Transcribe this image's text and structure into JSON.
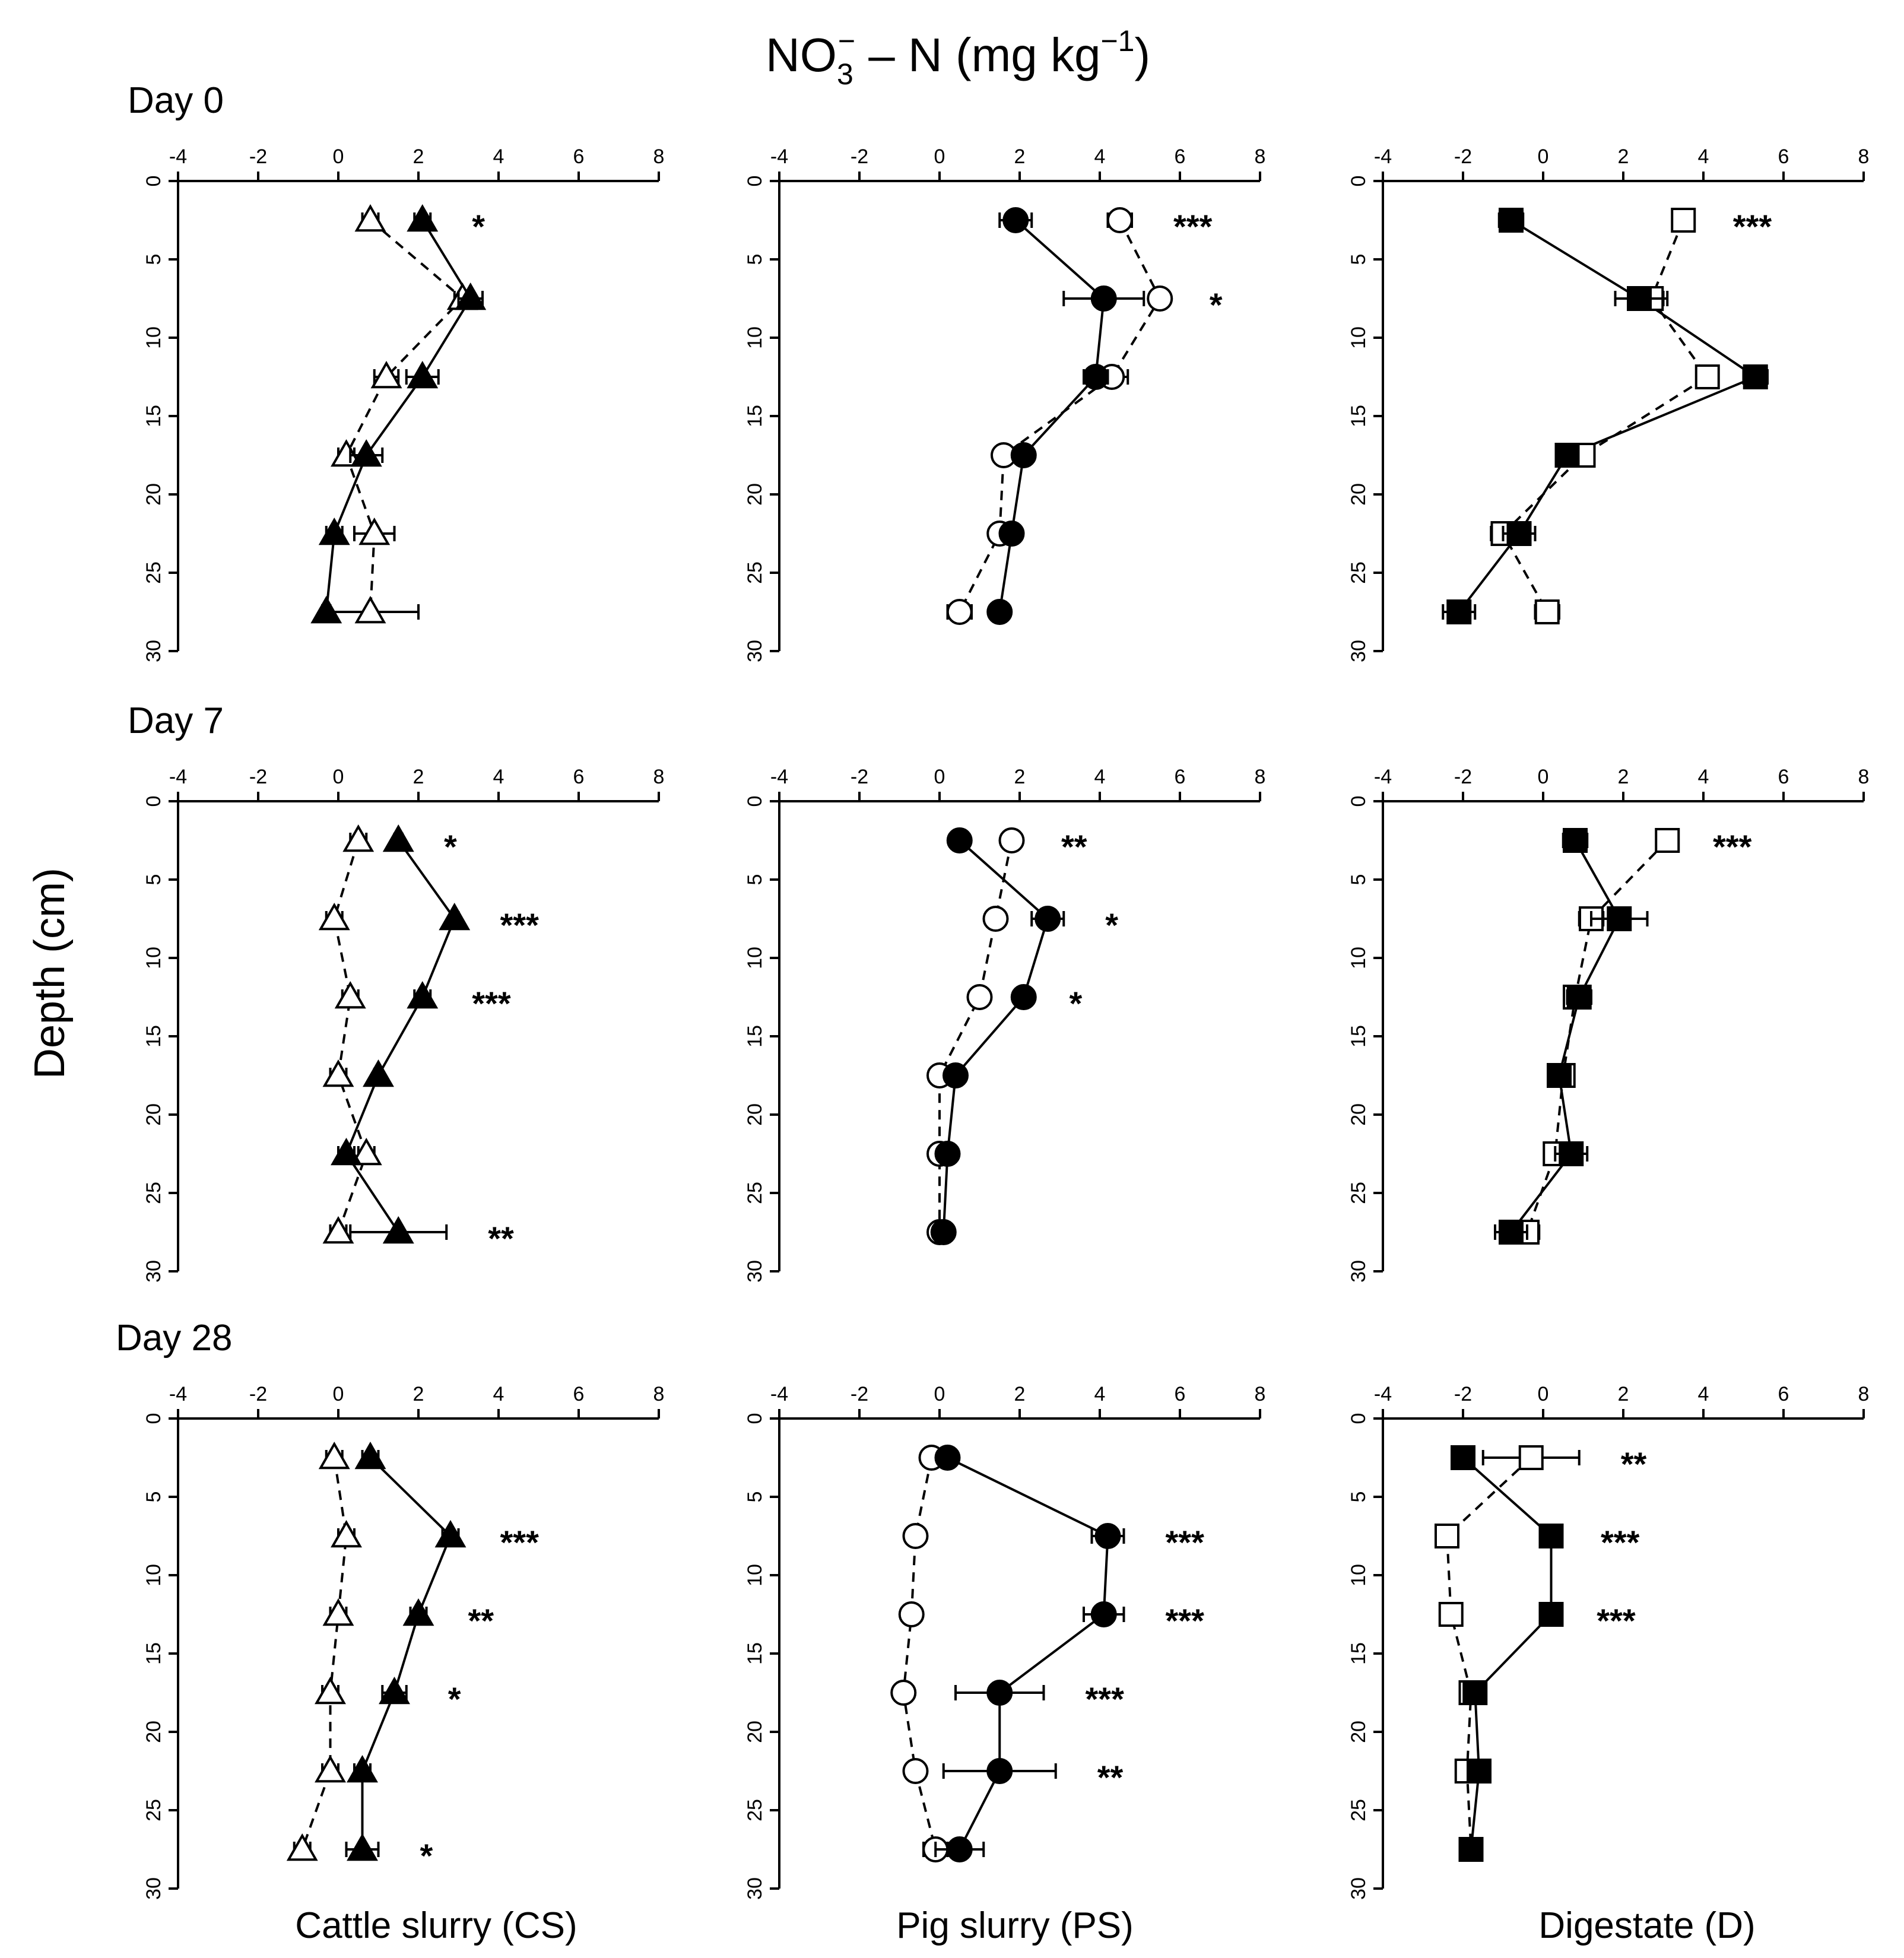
{
  "title_main": "NO",
  "title_sub": "3",
  "title_sup": "−",
  "title_tail": " – N (mg kg",
  "title_tail_sup": "−1",
  "title_close": ")",
  "ylabel": "Depth (cm)",
  "rows": [
    "Day 0",
    "Day 7",
    "Day 28"
  ],
  "columns": [
    {
      "label": "Cattle slurry (CS)",
      "marker": "triangle"
    },
    {
      "label": "Pig slurry (PS)",
      "marker": "circle"
    },
    {
      "label": "Digestate (D)",
      "marker": "square"
    }
  ],
  "x_ticks": [
    "-4",
    "-2",
    "0",
    "2",
    "4",
    "6",
    "8"
  ],
  "y_ticks": [
    "0",
    "5",
    "10",
    "15",
    "20",
    "25",
    "30"
  ],
  "chart_data": {
    "type": "scatter",
    "layout": "3x3 grid of depth profiles",
    "xlabel": "NO3- - N (mg kg-1)",
    "ylabel": "Depth (cm)",
    "xlim": [
      -4,
      8
    ],
    "ylim": [
      30,
      0
    ],
    "depths": [
      2.5,
      7.5,
      12.5,
      17.5,
      22.5,
      27.5
    ],
    "series_styles": {
      "filled": "solid line, filled marker",
      "open": "dashed line, open marker"
    },
    "panels": [
      {
        "day": "Day 0",
        "treatment": "Cattle slurry (CS)",
        "filled": [
          2.1,
          3.3,
          2.1,
          0.7,
          -0.1,
          -0.3
        ],
        "filled_err": [
          0.2,
          0.3,
          0.4,
          0.4,
          0.2,
          0.1
        ],
        "open": [
          0.8,
          3.1,
          1.2,
          0.2,
          0.9,
          0.8
        ],
        "open_err": [
          0.2,
          0.2,
          0.3,
          0.2,
          0.5,
          1.2
        ],
        "sig": [
          "*",
          "",
          "",
          "",
          "",
          ""
        ]
      },
      {
        "day": "Day 0",
        "treatment": "Pig slurry (PS)",
        "filled": [
          1.9,
          4.1,
          3.9,
          2.1,
          1.8,
          1.5
        ],
        "filled_err": [
          0.4,
          1.0,
          0.3,
          0.1,
          0.2,
          0.1
        ],
        "open": [
          4.5,
          5.5,
          4.3,
          1.6,
          1.5,
          0.5
        ],
        "open_err": [
          0.3,
          0.2,
          0.4,
          0.1,
          0.2,
          0.3
        ],
        "sig": [
          "***",
          "*",
          "",
          "",
          "",
          ""
        ]
      },
      {
        "day": "Day 0",
        "treatment": "Digestate (D)",
        "filled": [
          -0.8,
          2.4,
          5.3,
          0.6,
          -0.6,
          -2.1
        ],
        "filled_err": [
          0.3,
          0.6,
          0.3,
          0.2,
          0.4,
          0.4
        ],
        "open": [
          3.5,
          2.7,
          4.1,
          1.0,
          -1.0,
          0.1
        ],
        "open_err": [
          0.2,
          0.4,
          0.2,
          0.2,
          0.3,
          0.3
        ],
        "sig": [
          "***",
          "",
          "",
          "",
          "",
          ""
        ]
      },
      {
        "day": "Day 7",
        "treatment": "Cattle slurry (CS)",
        "filled": [
          1.5,
          2.9,
          2.1,
          1.0,
          0.2,
          1.5
        ],
        "filled_err": [
          0.1,
          0.1,
          0.2,
          0.1,
          0.2,
          1.2
        ],
        "open": [
          0.5,
          -0.1,
          0.3,
          0.0,
          0.7,
          0.0
        ],
        "open_err": [
          0.2,
          0.2,
          0.2,
          0.2,
          0.2,
          0.2
        ],
        "sig": [
          "*",
          "***",
          "***",
          "",
          "",
          "**"
        ]
      },
      {
        "day": "Day 7",
        "treatment": "Pig slurry (PS)",
        "filled": [
          0.5,
          2.7,
          2.1,
          0.4,
          0.2,
          0.1
        ],
        "filled_err": [
          0.1,
          0.4,
          0.1,
          0.2,
          0.1,
          0.1
        ],
        "open": [
          1.8,
          1.4,
          1.0,
          0.0,
          0.0,
          0.0
        ],
        "open_err": [
          0.2,
          0.2,
          0.1,
          0.2,
          0.1,
          0.1
        ],
        "sig": [
          "**",
          "*",
          "*",
          "",
          "",
          ""
        ]
      },
      {
        "day": "Day 7",
        "treatment": "Digestate (D)",
        "filled": [
          0.8,
          1.9,
          0.9,
          0.4,
          0.7,
          -0.8
        ],
        "filled_err": [
          0.3,
          0.7,
          0.3,
          0.1,
          0.4,
          0.4
        ],
        "open": [
          3.1,
          1.2,
          0.8,
          0.5,
          0.3,
          -0.4
        ],
        "open_err": [
          0.1,
          0.3,
          0.2,
          0.2,
          0.2,
          0.3
        ],
        "sig": [
          "***",
          "",
          "",
          "",
          "",
          ""
        ]
      },
      {
        "day": "Day 28",
        "treatment": "Cattle slurry (CS)",
        "filled": [
          0.8,
          2.8,
          2.0,
          1.4,
          0.6,
          0.6
        ],
        "filled_err": [
          0.2,
          0.2,
          0.2,
          0.3,
          0.2,
          0.4
        ],
        "open": [
          -0.1,
          0.2,
          0.0,
          -0.2,
          -0.2,
          -0.9
        ],
        "open_err": [
          0.2,
          0.2,
          0.2,
          0.2,
          0.2,
          0.2
        ],
        "sig": [
          "",
          "***",
          "**",
          "*",
          "",
          "*"
        ]
      },
      {
        "day": "Day 28",
        "treatment": "Pig slurry (PS)",
        "filled": [
          0.2,
          4.2,
          4.1,
          1.5,
          1.5,
          0.5
        ],
        "filled_err": [
          0.1,
          0.4,
          0.5,
          1.1,
          1.4,
          0.6
        ],
        "open": [
          -0.2,
          -0.6,
          -0.7,
          -0.9,
          -0.6,
          -0.1
        ],
        "open_err": [
          0.1,
          0.1,
          0.1,
          0.1,
          0.1,
          0.3
        ],
        "sig": [
          "",
          "***",
          "***",
          "***",
          "**",
          ""
        ]
      },
      {
        "day": "Day 28",
        "treatment": "Digestate (D)",
        "filled": [
          -2.0,
          0.2,
          0.2,
          -1.7,
          -1.6,
          -1.8
        ],
        "filled_err": [
          0.1,
          0.2,
          0.1,
          0.2,
          0.2,
          0.1
        ],
        "open": [
          -0.3,
          -2.4,
          -2.3,
          -1.8,
          -1.9,
          -1.8
        ],
        "open_err": [
          1.2,
          0.2,
          0.2,
          0.2,
          0.2,
          0.1
        ],
        "sig": [
          "**",
          "***",
          "***",
          "",
          "",
          ""
        ]
      }
    ]
  }
}
